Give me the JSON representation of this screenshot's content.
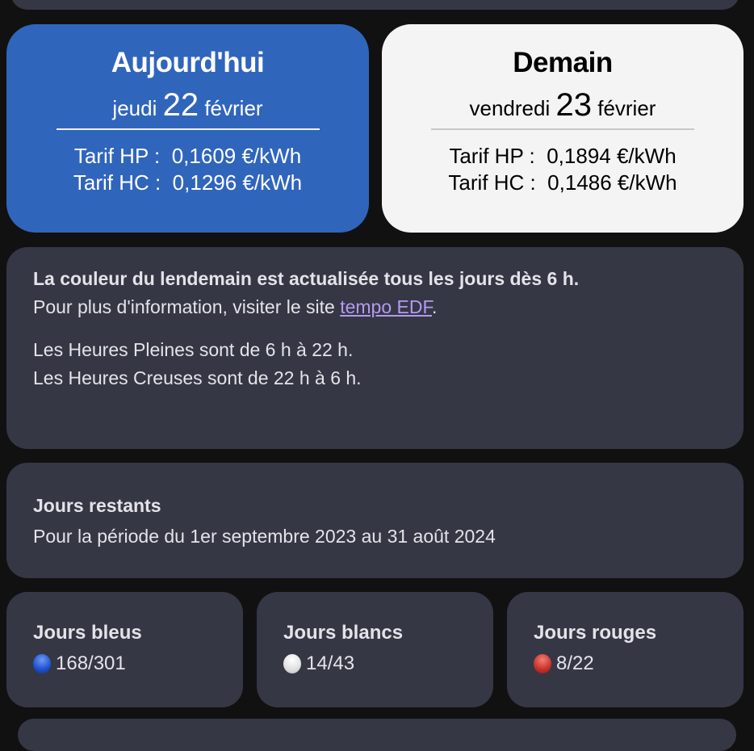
{
  "today": {
    "title": "Aujourd'hui",
    "weekday": "jeudi",
    "day": "22",
    "month": "février",
    "hp_label": "Tarif HP :",
    "hp_value": "0,1609 €/kWh",
    "hc_label": "Tarif HC :",
    "hc_value": "0,1296 €/kWh",
    "color": "#3065bc"
  },
  "tomorrow": {
    "title": "Demain",
    "weekday": "vendredi",
    "day": "23",
    "month": "février",
    "hp_label": "Tarif HP :",
    "hp_value": "0,1894 €/kWh",
    "hc_label": "Tarif HC :",
    "hc_value": "0,1486 €/kWh",
    "color": "#f4f4f4"
  },
  "info": {
    "line1": "La couleur du lendemain est actualisée tous les jours dès 6 h.",
    "line2_pre": "Pour plus d'information, visiter le site ",
    "link": "tempo EDF",
    "line2_post": ".",
    "line3": "Les Heures Pleines sont de 6 h à 22 h.",
    "line4": "Les Heures Creuses sont de 22 h à 6 h."
  },
  "remaining": {
    "title": "Jours restants",
    "period": "Pour la période du 1er septembre 2023 au 31 août 2024"
  },
  "counts": [
    {
      "title": "Jours bleus",
      "value": "168/301",
      "icon": "blue-circle-icon",
      "color": "#1f4fd0"
    },
    {
      "title": "Jours blancs",
      "value": "14/43",
      "icon": "white-circle-icon",
      "color": "#e0e0e0"
    },
    {
      "title": "Jours rouges",
      "value": "8/22",
      "icon": "red-circle-icon",
      "color": "#c8302a"
    }
  ]
}
